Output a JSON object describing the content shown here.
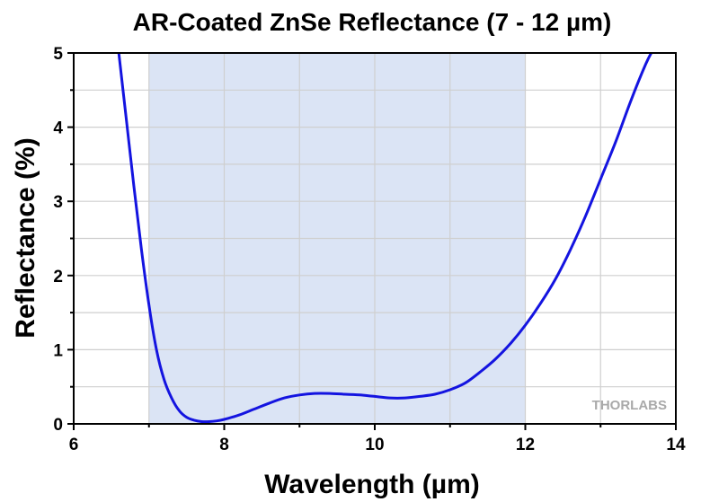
{
  "chart_data": {
    "type": "line",
    "title": "AR-Coated ZnSe Reflectance (7 - 12 µm)",
    "xlabel": "Wavelength (µm)",
    "ylabel": "Reflectance (%)",
    "xlim": [
      6,
      14
    ],
    "ylim": [
      0,
      5
    ],
    "xticks": [
      6,
      8,
      10,
      12,
      14
    ],
    "yticks": [
      0,
      1,
      2,
      3,
      4,
      5
    ],
    "grid": true,
    "shaded_range": {
      "x": [
        7,
        12
      ],
      "color": "#dbe4f5"
    },
    "watermark": "THORLABS",
    "series": [
      {
        "color": "#1414e0",
        "x": [
          6.6,
          6.7,
          6.8,
          6.9,
          7.0,
          7.1,
          7.2,
          7.3,
          7.4,
          7.5,
          7.6,
          7.7,
          7.8,
          7.9,
          8.0,
          8.2,
          8.4,
          8.6,
          8.8,
          9.0,
          9.2,
          9.4,
          9.6,
          9.8,
          10.0,
          10.2,
          10.4,
          10.6,
          10.8,
          11.0,
          11.2,
          11.4,
          11.6,
          11.8,
          12.0,
          12.2,
          12.4,
          12.6,
          12.8,
          13.0,
          13.2,
          13.4,
          13.6,
          13.7
        ],
        "y": [
          5.0,
          4.1,
          3.2,
          2.35,
          1.6,
          1.0,
          0.6,
          0.35,
          0.18,
          0.09,
          0.05,
          0.03,
          0.03,
          0.04,
          0.06,
          0.12,
          0.2,
          0.28,
          0.35,
          0.39,
          0.41,
          0.41,
          0.4,
          0.39,
          0.37,
          0.35,
          0.35,
          0.37,
          0.4,
          0.46,
          0.55,
          0.7,
          0.87,
          1.08,
          1.33,
          1.62,
          1.95,
          2.35,
          2.8,
          3.3,
          3.8,
          4.35,
          4.85,
          5.05
        ]
      }
    ]
  }
}
